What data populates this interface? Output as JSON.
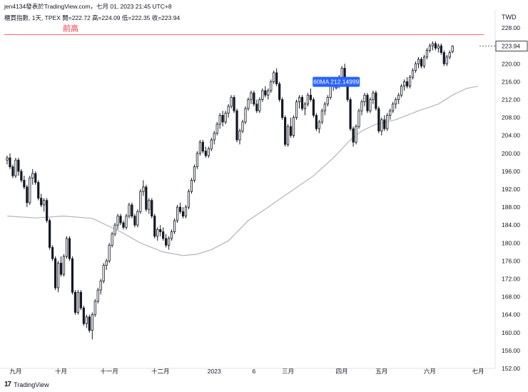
{
  "header": {
    "publisher_line": "jen4134發表於TradingView.com，七月 01, 2023 21:45 UTC+8",
    "symbol_line": "櫃買指數, 1天, TPEX  開=222.72  高=224.09  低=222.35  收=223.94"
  },
  "footer": {
    "logo_text": "17",
    "brand": "TradingView"
  },
  "chart_data": {
    "type": "candlestick",
    "currency": "TWD",
    "ylim": [
      152,
      232
    ],
    "y_ticks": [
      152,
      156,
      160,
      164,
      168,
      172,
      176,
      180,
      184,
      188,
      192,
      196,
      200,
      204,
      208,
      212,
      216,
      220,
      224,
      228
    ],
    "x_tick_labels": [
      {
        "label": "九月",
        "index": 3
      },
      {
        "label": "十月",
        "index": 19
      },
      {
        "label": "十一月",
        "index": 36
      },
      {
        "label": "十二月",
        "index": 54
      },
      {
        "label": "2023",
        "index": 73
      },
      {
        "label": "6",
        "index": 87
      },
      {
        "label": "三月",
        "index": 99
      },
      {
        "label": "四月",
        "index": 118
      },
      {
        "label": "五月",
        "index": 132
      },
      {
        "label": "六月",
        "index": 149
      },
      {
        "label": "七月",
        "index": 166
      }
    ],
    "last_price": 223.94,
    "resistance_line": {
      "label": "前高",
      "value": 226.5
    },
    "ma_label": "60MA 212.14999",
    "ma_label_index": 116,
    "ma60": [
      [
        0,
        186.0
      ],
      [
        10,
        185.6
      ],
      [
        20,
        186.0
      ],
      [
        30,
        185.5
      ],
      [
        40,
        182.5
      ],
      [
        47,
        180.0
      ],
      [
        55,
        178.0
      ],
      [
        62,
        177.2
      ],
      [
        67,
        177.5
      ],
      [
        72,
        178.5
      ],
      [
        78,
        180.5
      ],
      [
        85,
        185.0
      ],
      [
        92,
        188.0
      ],
      [
        100,
        191.5
      ],
      [
        108,
        195.0
      ],
      [
        115,
        199.0
      ],
      [
        121,
        203.0
      ],
      [
        125,
        205.0
      ],
      [
        130,
        206.5
      ],
      [
        137,
        207.5
      ],
      [
        145,
        209.5
      ],
      [
        152,
        211.0
      ],
      [
        157,
        213.0
      ],
      [
        162,
        214.5
      ],
      [
        166,
        215.0
      ]
    ],
    "candles": [
      [
        0,
        198.5,
        199.5,
        197.5,
        199.0
      ],
      [
        1,
        199.0,
        200.0,
        196.5,
        197.0
      ],
      [
        2,
        197.0,
        197.5,
        194.5,
        195.0
      ],
      [
        3,
        195.0,
        199.0,
        194.5,
        198.5
      ],
      [
        4,
        198.5,
        199.0,
        195.0,
        196.0
      ],
      [
        5,
        196.0,
        196.5,
        193.5,
        194.0
      ],
      [
        6,
        194.0,
        195.0,
        192.0,
        192.5
      ],
      [
        7,
        192.5,
        193.0,
        188.0,
        189.0
      ],
      [
        8,
        189.0,
        195.0,
        188.5,
        194.5
      ],
      [
        9,
        194.5,
        196.5,
        193.0,
        195.5
      ],
      [
        10,
        195.5,
        196.0,
        193.0,
        193.5
      ],
      [
        11,
        193.5,
        194.0,
        189.5,
        190.0
      ],
      [
        12,
        190.0,
        191.0,
        188.0,
        188.5
      ],
      [
        13,
        188.5,
        190.0,
        187.0,
        189.5
      ],
      [
        14,
        189.5,
        190.0,
        184.5,
        185.0
      ],
      [
        15,
        185.0,
        185.5,
        178.5,
        179.0
      ],
      [
        16,
        179.0,
        179.5,
        176.0,
        176.5
      ],
      [
        17,
        176.5,
        177.0,
        169.5,
        170.0
      ],
      [
        18,
        170.0,
        176.0,
        169.0,
        175.5
      ],
      [
        19,
        175.5,
        177.0,
        172.5,
        173.0
      ],
      [
        20,
        173.0,
        177.5,
        172.5,
        177.0
      ],
      [
        21,
        177.0,
        181.5,
        176.5,
        181.0
      ],
      [
        22,
        181.0,
        181.5,
        176.0,
        176.5
      ],
      [
        23,
        176.5,
        177.0,
        168.5,
        169.0
      ],
      [
        24,
        169.0,
        169.5,
        164.0,
        164.5
      ],
      [
        25,
        164.5,
        169.5,
        164.0,
        169.0
      ],
      [
        26,
        169.0,
        169.5,
        165.0,
        165.5
      ],
      [
        27,
        165.5,
        166.0,
        161.5,
        162.0
      ],
      [
        28,
        162.0,
        164.0,
        161.0,
        163.5
      ],
      [
        29,
        163.5,
        164.0,
        160.0,
        160.5
      ],
      [
        30,
        160.5,
        164.5,
        158.5,
        164.0
      ],
      [
        31,
        164.0,
        167.5,
        163.5,
        167.0
      ],
      [
        32,
        167.0,
        170.0,
        166.5,
        169.5
      ],
      [
        33,
        169.5,
        172.0,
        168.5,
        171.5
      ],
      [
        34,
        171.5,
        175.5,
        171.0,
        175.0
      ],
      [
        35,
        175.0,
        176.5,
        174.0,
        176.0
      ],
      [
        36,
        176.0,
        180.0,
        175.5,
        179.5
      ],
      [
        37,
        179.5,
        182.5,
        179.0,
        182.0
      ],
      [
        38,
        182.0,
        184.5,
        181.5,
        184.0
      ],
      [
        39,
        184.0,
        186.5,
        183.0,
        186.0
      ],
      [
        40,
        186.0,
        186.5,
        184.0,
        184.5
      ],
      [
        41,
        184.5,
        185.0,
        183.0,
        183.5
      ],
      [
        42,
        183.5,
        186.5,
        183.0,
        186.0
      ],
      [
        43,
        186.0,
        189.0,
        185.5,
        188.5
      ],
      [
        44,
        188.5,
        189.0,
        185.5,
        186.0
      ],
      [
        45,
        186.0,
        186.5,
        183.5,
        184.0
      ],
      [
        46,
        184.0,
        187.5,
        183.5,
        187.0
      ],
      [
        47,
        187.0,
        192.0,
        186.5,
        191.5
      ],
      [
        48,
        191.5,
        194.0,
        190.5,
        192.5
      ],
      [
        49,
        192.5,
        193.0,
        187.0,
        187.5
      ],
      [
        50,
        187.5,
        190.0,
        186.5,
        189.5
      ],
      [
        51,
        189.5,
        190.0,
        185.5,
        186.0
      ],
      [
        52,
        186.0,
        186.5,
        181.0,
        181.5
      ],
      [
        53,
        181.5,
        183.5,
        180.5,
        183.0
      ],
      [
        54,
        183.0,
        184.0,
        181.5,
        182.5
      ],
      [
        55,
        182.5,
        183.5,
        180.5,
        181.0
      ],
      [
        56,
        181.0,
        182.0,
        179.0,
        179.5
      ],
      [
        57,
        179.5,
        181.5,
        178.5,
        181.0
      ],
      [
        58,
        181.0,
        183.0,
        180.5,
        182.5
      ],
      [
        59,
        182.5,
        185.5,
        182.0,
        185.0
      ],
      [
        60,
        185.0,
        188.5,
        184.5,
        188.0
      ],
      [
        61,
        188.0,
        189.0,
        186.5,
        187.0
      ],
      [
        62,
        187.0,
        188.0,
        185.5,
        186.0
      ],
      [
        63,
        186.0,
        188.5,
        185.5,
        188.0
      ],
      [
        64,
        188.0,
        192.0,
        187.5,
        191.5
      ],
      [
        65,
        191.5,
        194.5,
        191.0,
        194.0
      ],
      [
        66,
        194.0,
        197.5,
        193.5,
        197.0
      ],
      [
        67,
        197.0,
        200.5,
        196.5,
        200.0
      ],
      [
        68,
        200.0,
        203.0,
        199.5,
        202.5
      ],
      [
        69,
        202.5,
        203.0,
        200.0,
        200.5
      ],
      [
        70,
        200.5,
        201.5,
        199.0,
        199.5
      ],
      [
        71,
        199.5,
        201.5,
        199.0,
        201.0
      ],
      [
        72,
        201.0,
        203.5,
        200.5,
        203.0
      ],
      [
        73,
        203.0,
        205.0,
        202.0,
        204.5
      ],
      [
        74,
        204.5,
        207.0,
        204.0,
        206.5
      ],
      [
        75,
        206.5,
        209.0,
        205.5,
        208.5
      ],
      [
        76,
        208.5,
        209.5,
        206.0,
        207.0
      ],
      [
        77,
        207.0,
        209.5,
        206.5,
        209.0
      ],
      [
        78,
        209.0,
        211.0,
        208.0,
        210.5
      ],
      [
        79,
        210.5,
        213.0,
        210.0,
        212.5
      ],
      [
        80,
        212.5,
        213.0,
        209.0,
        209.5
      ],
      [
        81,
        209.5,
        210.0,
        202.5,
        203.0
      ],
      [
        82,
        203.0,
        205.5,
        202.0,
        205.0
      ],
      [
        83,
        205.0,
        207.5,
        204.5,
        207.0
      ],
      [
        84,
        207.0,
        210.5,
        206.5,
        210.0
      ],
      [
        85,
        210.0,
        212.5,
        209.5,
        212.0
      ],
      [
        86,
        212.0,
        214.0,
        211.0,
        213.5
      ],
      [
        87,
        213.5,
        214.0,
        210.5,
        211.0
      ],
      [
        88,
        211.0,
        212.0,
        209.0,
        209.5
      ],
      [
        89,
        209.5,
        212.5,
        209.0,
        212.0
      ],
      [
        90,
        212.0,
        214.5,
        211.5,
        214.0
      ],
      [
        91,
        214.0,
        215.0,
        212.5,
        213.0
      ],
      [
        92,
        213.0,
        214.5,
        212.0,
        214.0
      ],
      [
        93,
        214.0,
        216.5,
        213.5,
        216.0
      ],
      [
        94,
        216.0,
        218.5,
        215.5,
        218.0
      ],
      [
        95,
        218.0,
        219.0,
        215.0,
        215.5
      ],
      [
        96,
        215.5,
        216.0,
        211.5,
        212.0
      ],
      [
        97,
        212.0,
        212.5,
        207.5,
        208.0
      ],
      [
        98,
        208.0,
        208.5,
        201.5,
        202.0
      ],
      [
        99,
        202.0,
        206.5,
        201.5,
        206.0
      ],
      [
        100,
        206.0,
        208.0,
        203.5,
        204.0
      ],
      [
        101,
        204.0,
        208.5,
        203.5,
        208.0
      ],
      [
        102,
        208.0,
        212.0,
        207.5,
        211.5
      ],
      [
        103,
        211.5,
        213.0,
        210.0,
        212.5
      ],
      [
        104,
        212.5,
        213.0,
        209.5,
        210.0
      ],
      [
        105,
        210.0,
        211.5,
        208.5,
        211.0
      ],
      [
        106,
        211.0,
        213.5,
        210.5,
        213.0
      ],
      [
        107,
        213.0,
        214.5,
        211.5,
        212.0
      ],
      [
        108,
        212.0,
        212.5,
        208.0,
        208.5
      ],
      [
        109,
        208.5,
        209.0,
        205.0,
        205.5
      ],
      [
        110,
        205.5,
        207.5,
        204.5,
        207.0
      ],
      [
        111,
        207.0,
        210.0,
        206.5,
        209.5
      ],
      [
        112,
        209.5,
        211.5,
        208.5,
        211.0
      ],
      [
        113,
        211.0,
        213.0,
        210.5,
        212.5
      ],
      [
        114,
        212.5,
        215.5,
        212.0,
        215.0
      ],
      [
        115,
        215.0,
        216.5,
        214.0,
        216.0
      ],
      [
        116,
        216.0,
        217.0,
        214.5,
        215.0
      ],
      [
        117,
        215.0,
        217.5,
        214.5,
        217.0
      ],
      [
        118,
        217.0,
        219.5,
        216.5,
        219.0
      ],
      [
        119,
        219.0,
        220.0,
        216.0,
        216.5
      ],
      [
        120,
        216.5,
        217.0,
        211.5,
        212.0
      ],
      [
        121,
        212.0,
        212.5,
        205.0,
        205.5
      ],
      [
        122,
        205.5,
        206.0,
        201.5,
        202.5
      ],
      [
        123,
        202.5,
        206.5,
        202.0,
        206.0
      ],
      [
        124,
        206.0,
        210.0,
        205.5,
        209.5
      ],
      [
        125,
        209.5,
        212.0,
        208.5,
        211.5
      ],
      [
        126,
        211.5,
        213.5,
        210.5,
        213.0
      ],
      [
        127,
        213.0,
        213.5,
        209.0,
        209.5
      ],
      [
        128,
        209.5,
        212.5,
        209.0,
        212.0
      ],
      [
        129,
        212.0,
        214.0,
        211.0,
        213.5
      ],
      [
        130,
        213.5,
        214.0,
        209.5,
        210.0
      ],
      [
        131,
        210.0,
        210.5,
        204.5,
        205.0
      ],
      [
        132,
        205.0,
        208.0,
        204.0,
        207.5
      ],
      [
        133,
        207.5,
        208.5,
        205.0,
        205.5
      ],
      [
        134,
        205.5,
        209.0,
        205.0,
        208.5
      ],
      [
        135,
        208.5,
        210.0,
        207.5,
        209.5
      ],
      [
        136,
        209.5,
        211.5,
        209.0,
        211.0
      ],
      [
        137,
        211.0,
        212.5,
        210.0,
        212.0
      ],
      [
        138,
        212.0,
        213.5,
        211.0,
        213.0
      ],
      [
        139,
        213.0,
        215.5,
        212.5,
        215.0
      ],
      [
        140,
        215.0,
        216.5,
        214.0,
        216.0
      ],
      [
        141,
        216.0,
        217.0,
        214.5,
        215.0
      ],
      [
        142,
        215.0,
        217.5,
        214.5,
        217.0
      ],
      [
        143,
        217.0,
        219.0,
        216.5,
        218.5
      ],
      [
        144,
        218.5,
        220.5,
        218.0,
        220.0
      ],
      [
        145,
        220.0,
        221.5,
        219.0,
        221.0
      ],
      [
        146,
        221.0,
        221.5,
        219.0,
        219.5
      ],
      [
        147,
        219.5,
        222.0,
        219.0,
        221.5
      ],
      [
        148,
        221.5,
        223.5,
        221.0,
        223.0
      ],
      [
        149,
        223.0,
        224.5,
        222.5,
        224.0
      ],
      [
        150,
        224.0,
        225.0,
        223.0,
        224.5
      ],
      [
        151,
        224.5,
        225.0,
        223.0,
        223.5
      ],
      [
        152,
        223.5,
        224.5,
        222.5,
        224.0
      ],
      [
        153,
        224.0,
        224.5,
        222.0,
        222.5
      ],
      [
        154,
        222.5,
        223.0,
        219.5,
        220.0
      ],
      [
        155,
        220.0,
        222.0,
        219.5,
        221.5
      ],
      [
        156,
        221.5,
        223.0,
        221.0,
        222.5
      ],
      [
        157,
        222.72,
        224.09,
        222.35,
        223.94
      ]
    ]
  }
}
